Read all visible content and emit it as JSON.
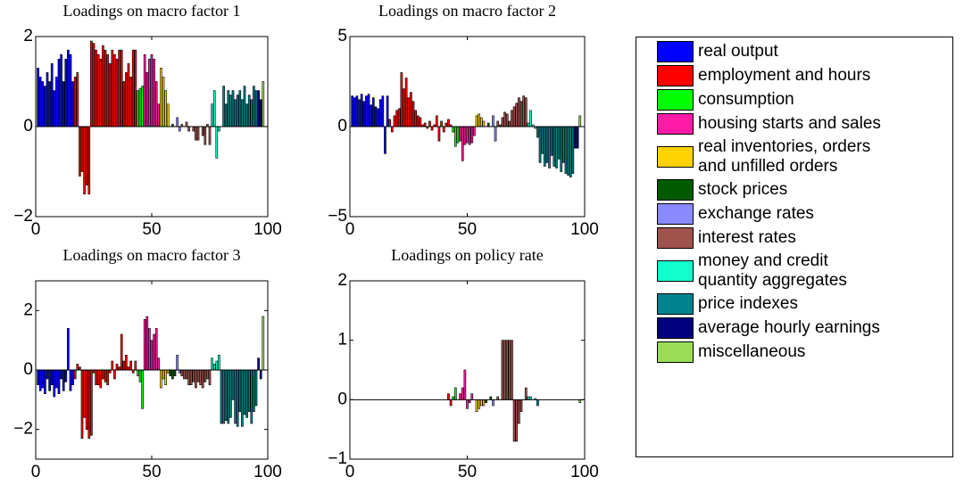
{
  "legend": {
    "series": [
      {
        "name": "real output",
        "color": "#0000ff",
        "x": [
          1,
          2,
          3,
          4,
          5,
          6,
          7,
          8,
          9,
          10,
          11,
          12,
          13,
          14,
          15,
          16
        ]
      },
      {
        "name": "employment and hours",
        "color": "#ff0000",
        "x": [
          17,
          18,
          19,
          20,
          21,
          22,
          23,
          24,
          25,
          26,
          27,
          28,
          29,
          30,
          31,
          32,
          33,
          34,
          35,
          36,
          37,
          38,
          39,
          40,
          41,
          42,
          43
        ]
      },
      {
        "name": "consumption",
        "color": "#00ff00",
        "x": [
          44,
          45,
          46
        ]
      },
      {
        "name": "housing starts and sales",
        "color": "#ff1aa8",
        "x": [
          47,
          48,
          49,
          50,
          51,
          52,
          53
        ]
      },
      {
        "name": "real inventories, orders\nand unfilled orders",
        "color": "#ffd200",
        "x": [
          54,
          55,
          56,
          57
        ]
      },
      {
        "name": "stock prices",
        "color": "#005a00",
        "x": [
          58,
          59,
          60
        ]
      },
      {
        "name": "exchange rates",
        "color": "#8a8aff",
        "x": [
          61,
          62
        ]
      },
      {
        "name": "interest rates",
        "color": "#a0524d",
        "x": [
          63,
          64,
          65,
          66,
          67,
          68,
          69,
          70,
          71,
          72,
          73,
          74,
          75
        ]
      },
      {
        "name": "money and credit\nquantity aggregates",
        "color": "#11ffcc",
        "x": [
          76,
          77,
          78,
          79
        ]
      },
      {
        "name": "price indexes",
        "color": "#00838f",
        "x": [
          80,
          81,
          82,
          83,
          84,
          85,
          86,
          87,
          88,
          89,
          90,
          91,
          92,
          93,
          94,
          95
        ]
      },
      {
        "name": "average hourly earnings",
        "color": "#000080",
        "x": [
          96,
          97
        ]
      },
      {
        "name": "miscellaneous",
        "color": "#99dd55",
        "x": [
          98
        ]
      }
    ]
  },
  "chart_data": [
    {
      "type": "bar",
      "title": "Loadings on macro factor 1",
      "xlim": [
        0,
        100
      ],
      "xticks": [
        0,
        50,
        100
      ],
      "ylim": [
        -2,
        2
      ],
      "yticks": [
        {
          "value": -2,
          "label": "−2"
        },
        0,
        2
      ],
      "series": [
        {
          "values": [
            1.3,
            1.1,
            1.0,
            0.9,
            1.2,
            1.0,
            1.4,
            0.8,
            1.1,
            1.5,
            1.6,
            1.0,
            1.5,
            1.7,
            1.6,
            1.0
          ]
        },
        {
          "values": [
            1.1,
            1.2,
            -1.1,
            -1.0,
            -1.5,
            -1.3,
            -1.5,
            1.9,
            1.85,
            1.7,
            1.6,
            1.5,
            1.8,
            1.7,
            1.6,
            1.4,
            1.7,
            1.6,
            1.5,
            1.7,
            1.7,
            1.0,
            1.2,
            1.4,
            1.1,
            1.7,
            1.7
          ]
        },
        {
          "values": [
            0.8,
            0.85,
            0.9
          ]
        },
        {
          "values": [
            1.6,
            1.2,
            1.5,
            1.6,
            1.5,
            1.0,
            0.5
          ]
        },
        {
          "values": [
            1.3,
            1.1,
            0.8,
            0.5
          ]
        },
        {
          "values": [
            0.0,
            0.05,
            0.0
          ]
        },
        {
          "values": [
            0.2,
            -0.1
          ]
        },
        {
          "values": [
            0.05,
            0.0,
            0.1,
            -0.1,
            0.0,
            -0.1,
            -0.3,
            -0.3,
            0.0,
            -0.2,
            -0.4,
            0.05,
            -0.4
          ]
        },
        {
          "values": [
            0.5,
            0.8,
            -0.7,
            -0.1
          ]
        },
        {
          "values": [
            0.0,
            0.9,
            0.5,
            0.8,
            0.7,
            0.8,
            0.6,
            0.7,
            0.8,
            0.6,
            0.9,
            0.5,
            0.7,
            0.6,
            0.9,
            0.8
          ]
        },
        {
          "values": [
            0.8,
            0.6
          ]
        },
        {
          "values": [
            1.0
          ]
        }
      ]
    },
    {
      "type": "bar",
      "title": "Loadings on macro factor 2",
      "xlim": [
        0,
        100
      ],
      "xticks": [
        0,
        50,
        100
      ],
      "ylim": [
        -5,
        5
      ],
      "yticks": [
        {
          "value": -5,
          "label": "−5"
        },
        0,
        5
      ],
      "series": [
        {
          "values": [
            1.7,
            1.6,
            1.7,
            1.5,
            1.8,
            1.4,
            1.7,
            1.8,
            1.2,
            1.6,
            1.1,
            1.0,
            1.5,
            1.7,
            -1.5,
            1.7
          ]
        },
        {
          "values": [
            0.4,
            -0.3,
            0.6,
            0.9,
            1.0,
            3.0,
            2.1,
            2.7,
            1.6,
            1.9,
            1.4,
            0.9,
            0.6,
            0.5,
            0.1,
            0.2,
            -0.1,
            0.3,
            -0.2,
            0.1,
            0.6,
            -0.8,
            0.3,
            -0.3,
            0.2,
            0.4,
            0.1
          ]
        },
        {
          "values": [
            -0.3,
            -1.1,
            -0.9
          ]
        },
        {
          "values": [
            -0.8,
            -1.9,
            -1.0,
            -0.9,
            -1.0,
            -0.9,
            -0.5
          ]
        },
        {
          "values": [
            0.6,
            0.7,
            0.5,
            0.3
          ]
        },
        {
          "values": [
            0.0,
            0.2,
            0.0
          ]
        },
        {
          "values": [
            0.6,
            -0.8
          ]
        },
        {
          "values": [
            0.3,
            0.1,
            0.5,
            0.8,
            0.7,
            0.3,
            0.9,
            1.1,
            1.3,
            1.6,
            1.4,
            1.7,
            1.6
          ]
        },
        {
          "values": [
            0.2,
            0.9,
            0.1,
            -0.1
          ]
        },
        {
          "values": [
            -0.6,
            -2.0,
            -1.5,
            -2.2,
            -2.0,
            -2.3,
            -1.6,
            -2.2,
            -2.3,
            -1.8,
            -2.5,
            -2.0,
            -2.6,
            -2.7,
            -2.8,
            -2.6
          ]
        },
        {
          "values": [
            -1.2,
            -1.2
          ]
        },
        {
          "values": [
            0.6
          ]
        }
      ]
    },
    {
      "type": "bar",
      "title": "Loadings on macro factor 3",
      "xlim": [
        0,
        100
      ],
      "xticks": [
        0,
        50,
        100
      ],
      "ylim": [
        -3,
        3
      ],
      "yticks": [
        {
          "value": -2,
          "label": "−2"
        },
        0,
        2
      ],
      "series": [
        {
          "values": [
            -0.5,
            -0.7,
            -0.6,
            -0.8,
            -0.3,
            -0.7,
            -0.5,
            -0.9,
            -0.6,
            -0.8,
            -0.3,
            -0.7,
            -0.4,
            1.4,
            -0.7,
            -0.5
          ]
        },
        {
          "values": [
            -0.3,
            0.2,
            0.1,
            -2.3,
            -1.6,
            -2.0,
            -2.3,
            -2.2,
            -0.1,
            -0.5,
            -0.5,
            -0.6,
            -0.3,
            -0.4,
            -0.5,
            -0.1,
            0.3,
            -0.3,
            0.2,
            0.1,
            1.2,
            0.3,
            0.5,
            0.1,
            0.3,
            -0.1,
            0.3
          ]
        },
        {
          "values": [
            -0.2,
            -0.4,
            -1.3
          ]
        },
        {
          "values": [
            1.7,
            1.8,
            1.4,
            1.0,
            1.2,
            1.4,
            0.4
          ]
        },
        {
          "values": [
            -0.6,
            -0.3,
            -0.5,
            -0.1
          ]
        },
        {
          "values": [
            -0.2,
            -0.3,
            -0.2
          ]
        },
        {
          "values": [
            0.5,
            -0.1
          ]
        },
        {
          "values": [
            -0.2,
            -0.3,
            -0.3,
            -0.5,
            -0.5,
            -0.4,
            -0.6,
            -0.4,
            -0.5,
            -0.6,
            -0.4,
            -0.3,
            -0.5
          ]
        },
        {
          "values": [
            0.4,
            0.2,
            0.3,
            0.5
          ]
        },
        {
          "values": [
            -1.8,
            -1.8,
            -1.7,
            -1.8,
            -1.6,
            -1.0,
            -1.8,
            -1.9,
            -1.4,
            -1.9,
            -1.5,
            -1.6,
            -1.4,
            -1.8,
            -1.4,
            -1.2
          ]
        },
        {
          "values": [
            0.4,
            -0.3
          ]
        },
        {
          "values": [
            1.8
          ]
        }
      ]
    },
    {
      "type": "bar",
      "title": "Loadings on policy rate",
      "xlim": [
        0,
        100
      ],
      "xticks": [
        0,
        50,
        100
      ],
      "ylim": [
        -1,
        2
      ],
      "yticks": [
        {
          "value": -1,
          "label": "−1"
        },
        0,
        1,
        2
      ],
      "series": [
        {
          "values": [
            0,
            0,
            0,
            0,
            0,
            0,
            0,
            0,
            0,
            0,
            0,
            0,
            0,
            0,
            0,
            0
          ]
        },
        {
          "values": [
            0,
            0,
            0,
            0,
            0,
            0,
            0,
            0,
            0,
            0,
            0,
            0,
            0,
            0,
            0,
            0,
            0,
            0,
            0,
            0,
            0,
            0,
            0,
            0,
            0,
            0.1,
            -0.1
          ]
        },
        {
          "values": [
            0.05,
            0.2,
            0.0
          ]
        },
        {
          "values": [
            0.1,
            0.2,
            0.5,
            -0.15,
            -0.05,
            0.1,
            0.0
          ]
        },
        {
          "values": [
            -0.2,
            -0.15,
            -0.1,
            -0.1
          ]
        },
        {
          "values": [
            -0.05,
            0.0,
            0.05
          ]
        },
        {
          "values": [
            -0.1,
            0.0
          ]
        },
        {
          "values": [
            0.05,
            0.0,
            1.0,
            1.0,
            1.0,
            1.0,
            1.0,
            -0.7,
            -0.7,
            -0.4,
            -0.2,
            0.0,
            0.2
          ]
        },
        {
          "values": [
            0.05,
            0.05,
            0.0,
            0.02
          ]
        },
        {
          "values": [
            -0.1,
            0,
            0,
            0,
            0,
            0,
            0,
            0,
            0,
            0,
            0,
            0,
            0,
            0,
            0,
            0
          ]
        },
        {
          "values": [
            0,
            0
          ]
        },
        {
          "values": [
            -0.05
          ]
        }
      ]
    }
  ]
}
